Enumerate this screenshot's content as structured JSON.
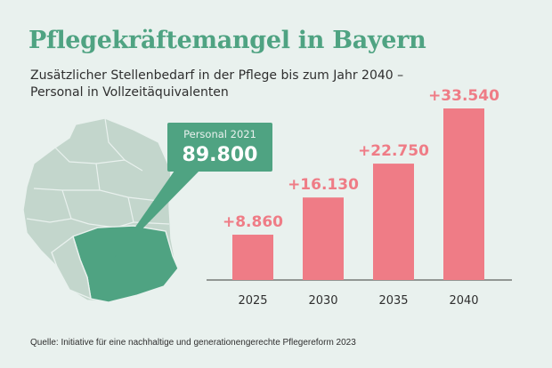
{
  "title": "Pflegekräftemangel in Bayern",
  "subtitle_lines": [
    "Zusätzlicher Stellenbedarf in der Pflege bis zum Jahr 2040 –",
    "Personal in Vollzeitäquivalenten"
  ],
  "callout": {
    "label": "Personal 2021",
    "value": "89.800"
  },
  "source": "Quelle: Initiative für eine nachhaltige und generationengerechte Pflegereform 2023",
  "colors": {
    "background": "#e9f1ee",
    "title": "#4fa382",
    "bar": "#ef7c86",
    "callout": "#4fa382",
    "map_fill": "#c3d6cc",
    "map_highlight": "#4fa382"
  },
  "map": {
    "region_highlight": "Bayern"
  },
  "chart_data": {
    "type": "bar",
    "categories": [
      "2025",
      "2030",
      "2035",
      "2040"
    ],
    "values": [
      8860,
      16130,
      22750,
      33540
    ],
    "value_labels": [
      "+8.860",
      "+16.130",
      "+22.750",
      "+33.540"
    ],
    "ylim": [
      0,
      33540
    ],
    "grid": false,
    "legend": "none"
  }
}
